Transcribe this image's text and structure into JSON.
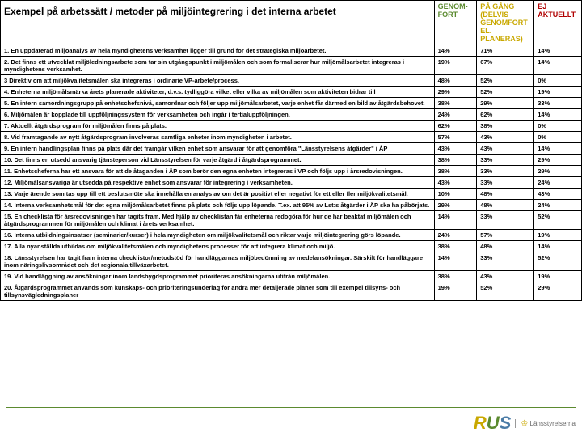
{
  "title": "Exempel på arbetssätt / metoder på miljöintegrering i det interna arbetet",
  "columns": {
    "genom": "GENOM-FÖRT",
    "pagang": "PÅ GÅNG (DELVIS GENOMFÖRT EL. PLANERAS)",
    "ej": "EJ AKTUELLT"
  },
  "colors": {
    "genom": "#5b8a2f",
    "pagang": "#c9a800",
    "ej": "#b00000",
    "border": "#000000"
  },
  "rows": [
    {
      "desc": "1. En uppdaterad miljöanalys av hela myndighetens verksamhet ligger till grund för det strategiska miljöarbetet.",
      "g": "14%",
      "p": "71%",
      "e": "14%"
    },
    {
      "desc": "2. Det finns ett utvecklat miljöledningsarbete som tar sin utgångspunkt i miljömålen och som formaliserar hur miljömålsarbetet integreras i myndighetens verksamhet.",
      "g": "19%",
      "p": "67%",
      "e": "14%"
    },
    {
      "desc": "3 Direktiv om att miljökvalitetsmålen ska integreras i ordinarie VP-arbete/process.",
      "g": "48%",
      "p": "52%",
      "e": "0%"
    },
    {
      "desc": "4. Enheterna miljömålsmärka årets planerade aktiviteter, d.v.s. tydliggöra vilket eller vilka av miljömålen som aktiviteten bidrar till",
      "g": "29%",
      "p": "52%",
      "e": "19%"
    },
    {
      "desc": "5. En intern samordningsgrupp på enhetschefsnivå, samordnar och följer upp miljömålsarbetet, varje enhet får därmed en bild av åtgärdsbehovet.",
      "g": "38%",
      "p": "29%",
      "e": "33%"
    },
    {
      "desc": "6. Miljömålen är kopplade till uppföljningssystem för verksamheten och ingår i tertialuppföljningen.",
      "g": "24%",
      "p": "62%",
      "e": "14%"
    },
    {
      "desc": "7. Aktuellt åtgärdsprogram för miljömålen finns på plats.",
      "g": "62%",
      "p": "38%",
      "e": "0%"
    },
    {
      "desc": "8. Vid framtagande av nytt åtgärdsprogram involveras samtliga enheter inom myndigheten i arbetet.",
      "g": "57%",
      "p": "43%",
      "e": "0%"
    },
    {
      "desc": "9. En intern handlingsplan finns på plats där det framgår vilken enhet som ansvarar för att genomföra \"Länsstyrelsens åtgärder\" i ÅP",
      "g": "43%",
      "p": "43%",
      "e": "14%"
    },
    {
      "desc": "10. Det finns en utsedd ansvarig tjänsteperson vid Länsstyrelsen för varje åtgärd i åtgärdsprogrammet.",
      "g": "38%",
      "p": "33%",
      "e": "29%"
    },
    {
      "desc": "11. Enhetscheferna har ett ansvara för att de åtaganden i ÅP som berör den egna enheten integreras i VP och följs upp i årsredovisningen.",
      "g": "38%",
      "p": "33%",
      "e": "29%"
    },
    {
      "desc": "12. Miljömålsansvariga är utsedda på respektive enhet som ansvarar för integrering i verksamheten.",
      "g": "43%",
      "p": "33%",
      "e": "24%"
    },
    {
      "desc": "13. Varje ärende som tas upp till ett beslutsmöte ska innehålla en analys av om det är positivt eller negativt för ett eller fler miljökvalitetsmål.",
      "g": "10%",
      "p": "48%",
      "e": "43%"
    },
    {
      "desc": "14. Interna verksamhetsmål för det egna miljömålsarbetet finns på plats och följs upp löpande. T.ex. att 95% av Lst:s åtgärder i ÅP ska ha påbörjats.",
      "g": "29%",
      "p": "48%",
      "e": "24%"
    },
    {
      "desc": "15. En checklista för årsredovisningen har tagits fram. Med hjälp av checklistan får enheterna redogöra för hur de har beaktat miljömålen och åtgärdsprogrammen för miljömålen och klimat i årets verksamhet.",
      "g": "14%",
      "p": "33%",
      "e": "52%"
    },
    {
      "desc": "16. Interna utbildningsinsatser (seminarier/kurser) i hela myndigheten om miljökvalitetsmål och riktar varje miljöintegrering görs löpande.",
      "g": "24%",
      "p": "57%",
      "e": "19%"
    },
    {
      "desc": "17. Alla nyanställda utbildas om miljökvalitetsmålen och myndighetens processer för att integrera klimat och miljö.",
      "g": "38%",
      "p": "48%",
      "e": "14%"
    },
    {
      "desc": "18. Länsstyrelsen har tagit fram interna checklistor/metodstöd för handläggarnas miljöbedömning av medelansökningar. Särskilt för handläggare inom näringslivsområdet och det regionala tillväxarbetet.",
      "g": "14%",
      "p": "33%",
      "e": "52%"
    },
    {
      "desc": "19. Vid handläggning av ansökningar inom landsbygdsprogrammet prioriteras ansökningarna utifrån miljömålen.",
      "g": "38%",
      "p": "43%",
      "e": "19%"
    },
    {
      "desc": "20. Åtgärdsprogrammet används som kunskaps- och prioriteringsunderlag för andra mer detaljerade planer som till exempel tillsyns- och tillsynsvägledningsplaner",
      "g": "19%",
      "p": "52%",
      "e": "29%"
    }
  ],
  "footer": {
    "rus": {
      "r": "R",
      "u": "U",
      "s": "S"
    },
    "lans": "Länsstyrelserna"
  }
}
